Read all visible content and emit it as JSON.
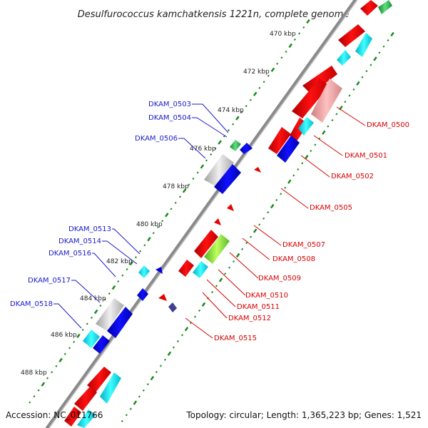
{
  "title": "Desulfurococcus kamchatkensis 1221n, complete genome",
  "footer": {
    "accession": "Accession: NC_011766",
    "summary": "Topology: circular; Length: 1,365,223 bp; Genes: 1,521"
  },
  "scale_labels": [
    "470 kbp",
    "472 kbp",
    "474 kbp",
    "476 kbp",
    "478 kbp",
    "480 kbp",
    "482 kbp",
    "484 kbp",
    "486 kbp",
    "488 kbp"
  ],
  "genes_left": [
    "DKAM_0503",
    "DKAM_0504",
    "DKAM_0506",
    "DKAM_0513",
    "DKAM_0514",
    "DKAM_0516",
    "DKAM_0517",
    "DKAM_0518"
  ],
  "genes_right": [
    "DKAM_0500",
    "DKAM_0501",
    "DKAM_0502",
    "DKAM_0505",
    "DKAM_0507",
    "DKAM_0508",
    "DKAM_0509",
    "DKAM_0510",
    "DKAM_0511",
    "DKAM_0512",
    "DKAM_0515"
  ],
  "colors": {
    "backbone": "#8a8a8a",
    "tick_green": "#1a8a1a",
    "label_blue": "#1a1acc",
    "label_red": "#d80000",
    "forward_red": "#e80000",
    "reverse_blue": "#0000e0",
    "cyan": "#00e0f0",
    "gray": "#c8c8c8",
    "pink": "#f0a0a0",
    "lime": "#80e040",
    "green": "#30c050",
    "navy": "#404090"
  }
}
